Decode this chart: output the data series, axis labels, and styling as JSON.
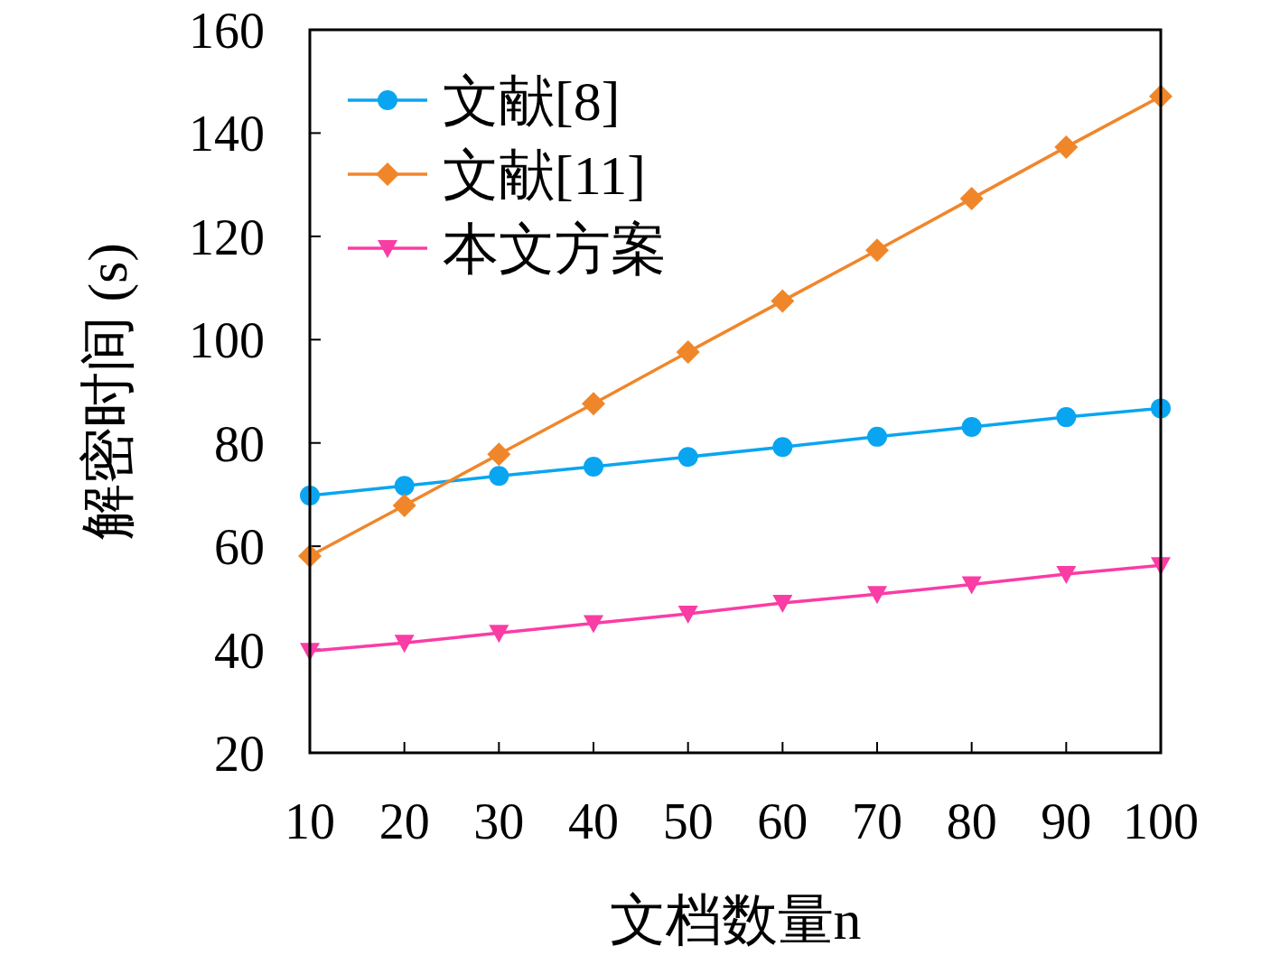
{
  "chart_data": {
    "type": "line",
    "xlabel": "文档数量n",
    "ylabel": "解密时间 (s)",
    "x": [
      10,
      20,
      30,
      40,
      50,
      60,
      70,
      80,
      90,
      100
    ],
    "series": [
      {
        "name": "文献[8]",
        "color": "#0aa5f0",
        "marker": "circle",
        "values": [
          69.8,
          71.7,
          73.6,
          75.4,
          77.3,
          79.2,
          81.2,
          83.1,
          85.0,
          86.7
        ]
      },
      {
        "name": "文献[11]",
        "color": "#f0862a",
        "marker": "diamond",
        "values": [
          58.1,
          67.9,
          77.8,
          87.6,
          97.6,
          107.5,
          117.3,
          127.3,
          137.3,
          147.1
        ]
      },
      {
        "name": "本文方案",
        "color": "#fa3ca5",
        "marker": "triangle",
        "values": [
          39.7,
          41.3,
          43.2,
          45.1,
          46.9,
          49.0,
          50.7,
          52.6,
          54.6,
          56.3
        ]
      }
    ],
    "xlim": [
      10,
      100
    ],
    "xticks": [
      10,
      20,
      30,
      40,
      50,
      60,
      70,
      80,
      90,
      100
    ],
    "ylim": [
      20,
      160
    ],
    "yticks": [
      20,
      40,
      60,
      80,
      100,
      120,
      140,
      160
    ],
    "grid": false,
    "legend": "top left",
    "line_style": "solid"
  }
}
